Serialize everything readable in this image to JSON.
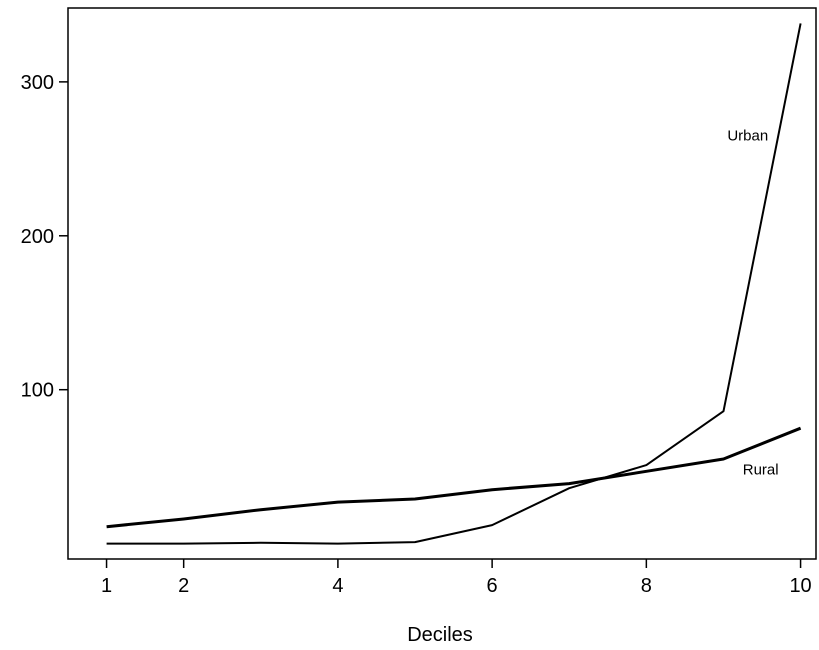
{
  "chart_data": {
    "type": "line",
    "title": "",
    "xlabel": "Deciles",
    "ylabel": "",
    "xlim": [
      0.5,
      10.2
    ],
    "ylim": [
      -10,
      348
    ],
    "x_ticks": [
      1,
      2,
      4,
      6,
      8,
      10
    ],
    "y_ticks": [
      100,
      200,
      300
    ],
    "grid": false,
    "legend": "none",
    "series": [
      {
        "name": "Urban",
        "x": [
          1,
          2,
          3,
          4,
          5,
          6,
          7,
          8,
          9,
          10
        ],
        "y": [
          0,
          0,
          0.5,
          0,
          1,
          12,
          36,
          51,
          86,
          338
        ],
        "color": "#000000"
      },
      {
        "name": "Rural",
        "x": [
          1,
          2,
          3,
          4,
          5,
          6,
          7,
          8,
          9,
          10
        ],
        "y": [
          11,
          16,
          22,
          27,
          29,
          35,
          39,
          47,
          55,
          75
        ],
        "color": "#000000"
      }
    ]
  }
}
